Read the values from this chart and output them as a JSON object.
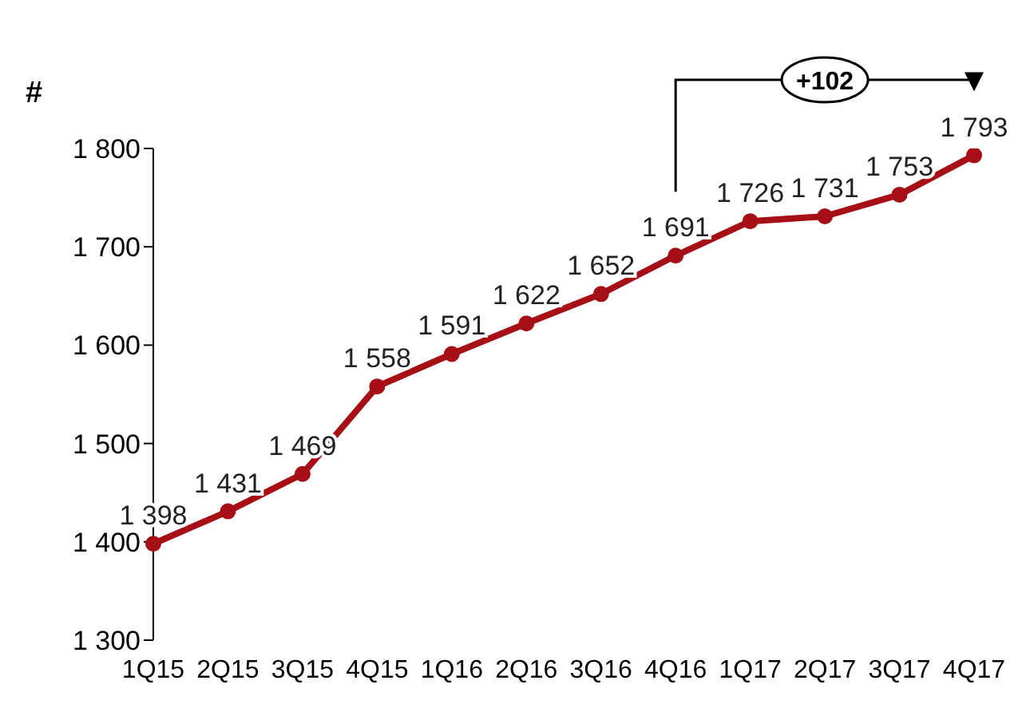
{
  "chart_data": {
    "type": "line",
    "ylabel": "#",
    "categories": [
      "1Q15",
      "2Q15",
      "3Q15",
      "4Q15",
      "1Q16",
      "2Q16",
      "3Q16",
      "4Q16",
      "1Q17",
      "2Q17",
      "3Q17",
      "4Q17"
    ],
    "series": [
      {
        "color": "#a50f15",
        "values": [
          1398,
          1431,
          1469,
          1558,
          1591,
          1622,
          1652,
          1691,
          1726,
          1731,
          1753,
          1793
        ],
        "value_labels": [
          "1 398",
          "1 431",
          "1 469",
          "1 558",
          "1 591",
          "1 622",
          "1 652",
          "1 691",
          "1 726",
          "1 731",
          "1 753",
          "1 793"
        ]
      }
    ],
    "ylim": [
      1300,
      1800
    ],
    "yticks": [
      {
        "value": 1300,
        "label": "1 300"
      },
      {
        "value": 1400,
        "label": "1 400"
      },
      {
        "value": 1500,
        "label": "1 500"
      },
      {
        "value": 1600,
        "label": "1 600"
      },
      {
        "value": 1700,
        "label": "1 700"
      },
      {
        "value": 1800,
        "label": "1 800"
      }
    ],
    "annotations": [
      "+102"
    ],
    "marker": "circle",
    "grid": false,
    "legend": false
  }
}
